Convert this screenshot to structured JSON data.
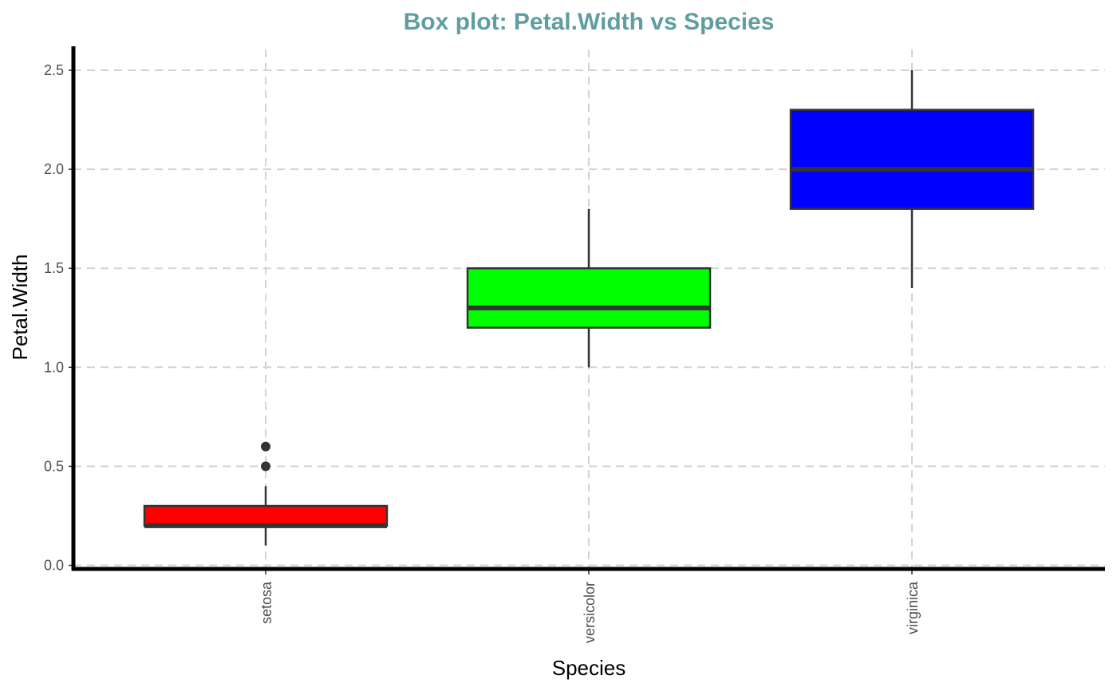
{
  "chart_data": {
    "type": "box",
    "title": "Box plot: Petal.Width vs Species",
    "xlabel": "Species",
    "ylabel": "Petal.Width",
    "ylim": [
      0,
      2.6
    ],
    "yticks": [
      0.0,
      0.5,
      1.0,
      1.5,
      2.0,
      2.5
    ],
    "ytick_labels": [
      "0.0",
      "0.5",
      "1.0",
      "1.5",
      "2.0",
      "2.5"
    ],
    "grid": true,
    "legend": "none",
    "categories": [
      "setosa",
      "versicolor",
      "virginica"
    ],
    "boxes": [
      {
        "category": "setosa",
        "whisker_low": 0.1,
        "q1": 0.2,
        "median": 0.2,
        "q3": 0.3,
        "whisker_high": 0.4,
        "outliers": [
          0.5,
          0.6
        ],
        "fill": "#ff0000"
      },
      {
        "category": "versicolor",
        "whisker_low": 1.0,
        "q1": 1.2,
        "median": 1.3,
        "q3": 1.5,
        "whisker_high": 1.8,
        "outliers": [],
        "fill": "#00ff00"
      },
      {
        "category": "virginica",
        "whisker_low": 1.4,
        "q1": 1.8,
        "median": 2.0,
        "q3": 2.3,
        "whisker_high": 2.5,
        "outliers": [],
        "fill": "#0000ff"
      }
    ],
    "colors": {
      "title": "#5f9ea0",
      "grid": "#d3d3d3",
      "axis": "#000000",
      "box_outline": "#333333"
    }
  }
}
